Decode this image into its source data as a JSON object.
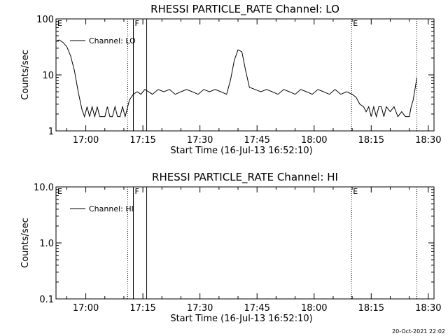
{
  "footer_timestamp": "20-Oct-2021 22:02",
  "chart_data": [
    {
      "type": "line",
      "title": "RHESSI PARTICLE_RATE Channel: LO",
      "xlabel": "Start Time (16-Jul-13 16:52:10)",
      "ylabel": "Counts/sec",
      "yscale": "log",
      "ylim": [
        1,
        100
      ],
      "yticks": [
        1,
        10,
        100
      ],
      "ytick_labels": [
        "1",
        "10",
        "100"
      ],
      "xlim": [
        "16:52:10",
        "18:31:30"
      ],
      "xticks": [
        "17:00",
        "17:15",
        "17:30",
        "17:45",
        "18:00",
        "18:15",
        "18:30"
      ],
      "legend": {
        "label": "Channel: LO",
        "position": "top-left"
      },
      "flags": [
        {
          "time": "16:52:10",
          "label": "E",
          "style": "none"
        },
        {
          "time": "17:11:00",
          "label": "",
          "style": "dotted"
        },
        {
          "time": "17:12:30",
          "label": "F",
          "style": "solid"
        },
        {
          "time": "17:16:00",
          "label": "",
          "style": "solid"
        },
        {
          "time": "18:09:50",
          "label": "E",
          "style": "dotted"
        },
        {
          "time": "18:27:00",
          "label": "",
          "style": "dotted"
        }
      ],
      "series": [
        {
          "name": "Channel: LO",
          "x": [
            "16:52:10",
            "16:53:00",
            "16:54:00",
            "16:55:00",
            "16:56:00",
            "16:57:00",
            "16:58:00",
            "16:59:00",
            "16:59:40",
            "17:00:20",
            "17:01:00",
            "17:01:40",
            "17:02:20",
            "17:03:00",
            "17:03:40",
            "17:04:20",
            "17:05:00",
            "17:05:40",
            "17:06:20",
            "17:07:00",
            "17:07:40",
            "17:08:20",
            "17:09:00",
            "17:09:40",
            "17:10:20",
            "17:11:00",
            "17:11:30",
            "17:12:30",
            "17:13:30",
            "17:14:30",
            "17:15:30",
            "17:16:30",
            "17:17:30",
            "17:19:00",
            "17:20:30",
            "17:22:00",
            "17:23:30",
            "17:25:00",
            "17:26:30",
            "17:28:00",
            "17:29:30",
            "17:31:00",
            "17:32:30",
            "17:34:00",
            "17:35:30",
            "17:37:00",
            "17:38:00",
            "17:39:00",
            "17:40:00",
            "17:41:00",
            "17:42:00",
            "17:43:00",
            "17:44:30",
            "17:46:00",
            "17:47:30",
            "17:49:00",
            "17:50:30",
            "17:52:00",
            "17:53:30",
            "17:55:00",
            "17:56:30",
            "17:58:00",
            "17:59:30",
            "18:01:00",
            "18:02:30",
            "18:04:00",
            "18:05:30",
            "18:07:00",
            "18:08:30",
            "18:10:00",
            "18:11:00",
            "18:12:00",
            "18:13:00",
            "18:13:40",
            "18:14:20",
            "18:15:00",
            "18:15:40",
            "18:16:20",
            "18:17:00",
            "18:17:40",
            "18:18:20",
            "18:19:00",
            "18:20:00",
            "18:21:00",
            "18:22:00",
            "18:23:00",
            "18:24:00",
            "18:25:00",
            "18:25:30",
            "18:26:00",
            "18:26:30",
            "18:27:00"
          ],
          "values": [
            40,
            42,
            38,
            32,
            22,
            12,
            5,
            2.4,
            1.8,
            2.7,
            1.8,
            2.7,
            1.8,
            2.7,
            1.8,
            1.8,
            1.8,
            2.7,
            1.8,
            1.8,
            2.7,
            1.8,
            1.8,
            2.7,
            1.8,
            2.7,
            3.6,
            4.5,
            5,
            4.5,
            5.5,
            5,
            4.5,
            5.5,
            5,
            5.5,
            4.5,
            5,
            5.5,
            5,
            4.5,
            5.5,
            5,
            5.5,
            5,
            4.5,
            8,
            18,
            28,
            26,
            12,
            6,
            5.5,
            5,
            5.5,
            5,
            4.5,
            5.5,
            5,
            4.5,
            5.5,
            5,
            4.5,
            5.5,
            5,
            4.5,
            5.5,
            4.5,
            5,
            4.5,
            4,
            3,
            2.7,
            2.2,
            2.7,
            1.8,
            2.7,
            1.8,
            2.7,
            2.7,
            1.8,
            2.7,
            2.2,
            2.7,
            1.8,
            2.2,
            1.8,
            1.8,
            2.7,
            3.5,
            5.5,
            9
          ]
        }
      ]
    },
    {
      "type": "line",
      "title": "RHESSI PARTICLE_RATE Channel: HI",
      "xlabel": "Start Time (16-Jul-13 16:52:10)",
      "ylabel": "Counts/sec",
      "yscale": "log",
      "ylim": [
        0.1,
        10
      ],
      "yticks": [
        0.1,
        1,
        10
      ],
      "ytick_labels": [
        "0.1",
        "1.0",
        "10.0"
      ],
      "xlim": [
        "16:52:10",
        "18:31:30"
      ],
      "xticks": [
        "17:00",
        "17:15",
        "17:30",
        "17:45",
        "18:00",
        "18:15",
        "18:30"
      ],
      "legend": {
        "label": "Channel: HI",
        "position": "top-left"
      },
      "flags": [
        {
          "time": "16:52:10",
          "label": "E",
          "style": "none"
        },
        {
          "time": "17:11:00",
          "label": "",
          "style": "dotted"
        },
        {
          "time": "17:12:30",
          "label": "F",
          "style": "solid"
        },
        {
          "time": "17:16:00",
          "label": "",
          "style": "solid"
        },
        {
          "time": "18:09:50",
          "label": "E",
          "style": "dotted"
        },
        {
          "time": "18:27:00",
          "label": "",
          "style": "dotted"
        }
      ],
      "series": [
        {
          "name": "Channel: HI",
          "x": [],
          "values": []
        }
      ]
    }
  ]
}
